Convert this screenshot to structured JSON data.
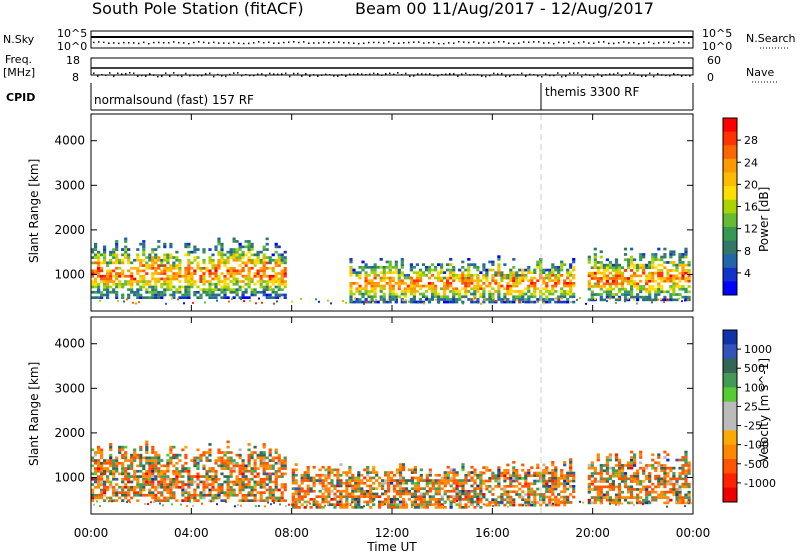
{
  "header": {
    "station": "South Pole Station (fitACF)",
    "beam_and_dates": "Beam 00  11/Aug/2017 - 12/Aug/2017"
  },
  "top_panels": {
    "nsky_label": "N.Sky",
    "nsky_tick_high": "10^5",
    "nsky_tick_low": "10^0",
    "nsearch_label": "N.Search",
    "nsearch_tick_high": "10^5",
    "nsearch_tick_low": "10^0",
    "freq_label_1": "Freq.",
    "freq_label_2": "[MHz]",
    "freq_tick_high": "18",
    "freq_tick_low": "8",
    "nave_label": "Nave",
    "nave_tick_high": "60",
    "nave_tick_low": "0",
    "cpid_label": "CPID",
    "cpid_segments": [
      {
        "label": "normalsound (fast) 157 RF",
        "start_hour": 0
      },
      {
        "label": "themis 3300 RF",
        "start_hour": 18
      }
    ]
  },
  "colorbars": {
    "power": {
      "label": "Power [dB]",
      "ticks": [
        "28",
        "24",
        "20",
        "16",
        "12",
        "8",
        "4"
      ],
      "colors": [
        "#ff0000",
        "#ff3300",
        "#ff6600",
        "#ff9900",
        "#ffbb00",
        "#ffdd00",
        "#aad400",
        "#66bb33",
        "#339955",
        "#337766",
        "#2266aa",
        "#1133cc",
        "#0000ff"
      ]
    },
    "velocity": {
      "label": "Velocity [m s^-1]",
      "ticks": [
        "1000",
        "500",
        "100",
        "25",
        "-25",
        "-100",
        "-500",
        "-1000"
      ],
      "colors": [
        "#1133aa",
        "#3355bb",
        "#336655",
        "#449955",
        "#55cc33",
        "#bbbbbb",
        "#bbbbbb",
        "#ffaa00",
        "#ff8800",
        "#ff5500",
        "#ff2200",
        "#ee0000"
      ]
    }
  },
  "chart_data": [
    {
      "type": "heatmap",
      "name": "power",
      "ylabel": "Slant Range [km]",
      "ylim": [
        180,
        4600
      ],
      "yticks": [
        "1000",
        "2000",
        "3000",
        "4000"
      ],
      "xlim": [
        0,
        24
      ],
      "echo_bands": [
        {
          "t0": 0.0,
          "t1": 7.8,
          "r0": 450,
          "r1": 1800
        },
        {
          "t0": 10.3,
          "t1": 15.6,
          "r0": 350,
          "r1": 1350
        },
        {
          "t0": 15.6,
          "t1": 19.3,
          "r0": 350,
          "r1": 1400
        },
        {
          "t0": 19.8,
          "t1": 23.9,
          "r0": 400,
          "r1": 1600
        }
      ]
    },
    {
      "type": "heatmap",
      "name": "velocity",
      "ylabel": "Slant Range [km]",
      "ylim": [
        180,
        4600
      ],
      "yticks": [
        "1000",
        "2000",
        "3000",
        "4000"
      ],
      "xlim": [
        0,
        24
      ],
      "xlabel": "Time UT",
      "xticks": [
        "00:00",
        "04:00",
        "08:00",
        "12:00",
        "16:00",
        "20:00",
        "00:00"
      ],
      "echo_bands": [
        {
          "t0": 0.0,
          "t1": 7.8,
          "r0": 450,
          "r1": 1800
        },
        {
          "t0": 8.0,
          "t1": 15.6,
          "r0": 300,
          "r1": 1300
        },
        {
          "t0": 15.6,
          "t1": 19.3,
          "r0": 350,
          "r1": 1400
        },
        {
          "t0": 19.8,
          "t1": 23.9,
          "r0": 400,
          "r1": 1600
        }
      ]
    }
  ]
}
